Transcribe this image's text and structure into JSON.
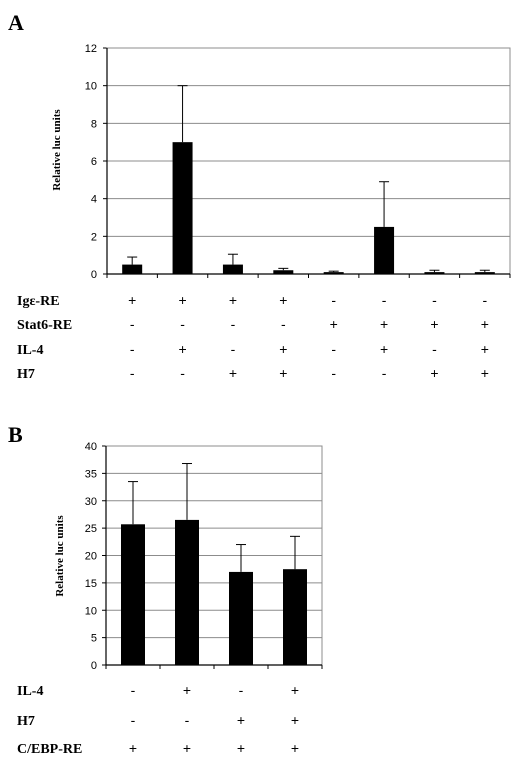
{
  "chart_data": [
    {
      "panel": "A",
      "type": "bar",
      "ylabel": "Relative luc units",
      "ylim": [
        0,
        12
      ],
      "yticks": [
        0,
        2,
        4,
        6,
        8,
        10,
        12
      ],
      "grid": true,
      "values": [
        0.5,
        7.0,
        0.5,
        0.2,
        0.1,
        2.5,
        0.1,
        0.1
      ],
      "errors": [
        0.4,
        3.0,
        0.55,
        0.1,
        0.05,
        2.4,
        0.1,
        0.1
      ],
      "conditions": [
        {
          "label": "Igε-RE",
          "signs": [
            "+",
            "+",
            "+",
            "+",
            "-",
            "-",
            "-",
            "-"
          ]
        },
        {
          "label": "Stat6-RE",
          "signs": [
            "-",
            "-",
            "-",
            "-",
            "+",
            "+",
            "+",
            "+"
          ]
        },
        {
          "label": "IL-4",
          "signs": [
            "-",
            "+",
            "-",
            "+",
            "-",
            "+",
            "-",
            "+"
          ]
        },
        {
          "label": "H7",
          "signs": [
            "-",
            "-",
            "+",
            "+",
            "-",
            "-",
            "+",
            "+"
          ]
        }
      ]
    },
    {
      "panel": "B",
      "type": "bar",
      "ylabel": "Relative luc units",
      "ylim": [
        0,
        40
      ],
      "yticks": [
        0,
        5,
        10,
        15,
        20,
        25,
        30,
        35,
        40
      ],
      "grid": true,
      "values": [
        25.7,
        26.5,
        17.0,
        17.5
      ],
      "errors": [
        7.8,
        10.3,
        5.0,
        6.0
      ],
      "conditions": [
        {
          "label": "IL-4",
          "signs": [
            "-",
            "+",
            "-",
            "+"
          ]
        },
        {
          "label": "H7",
          "signs": [
            "-",
            "-",
            "+",
            "+"
          ]
        },
        {
          "label": "C/EBP-RE",
          "signs": [
            "+",
            "+",
            "+",
            "+"
          ]
        }
      ]
    }
  ]
}
